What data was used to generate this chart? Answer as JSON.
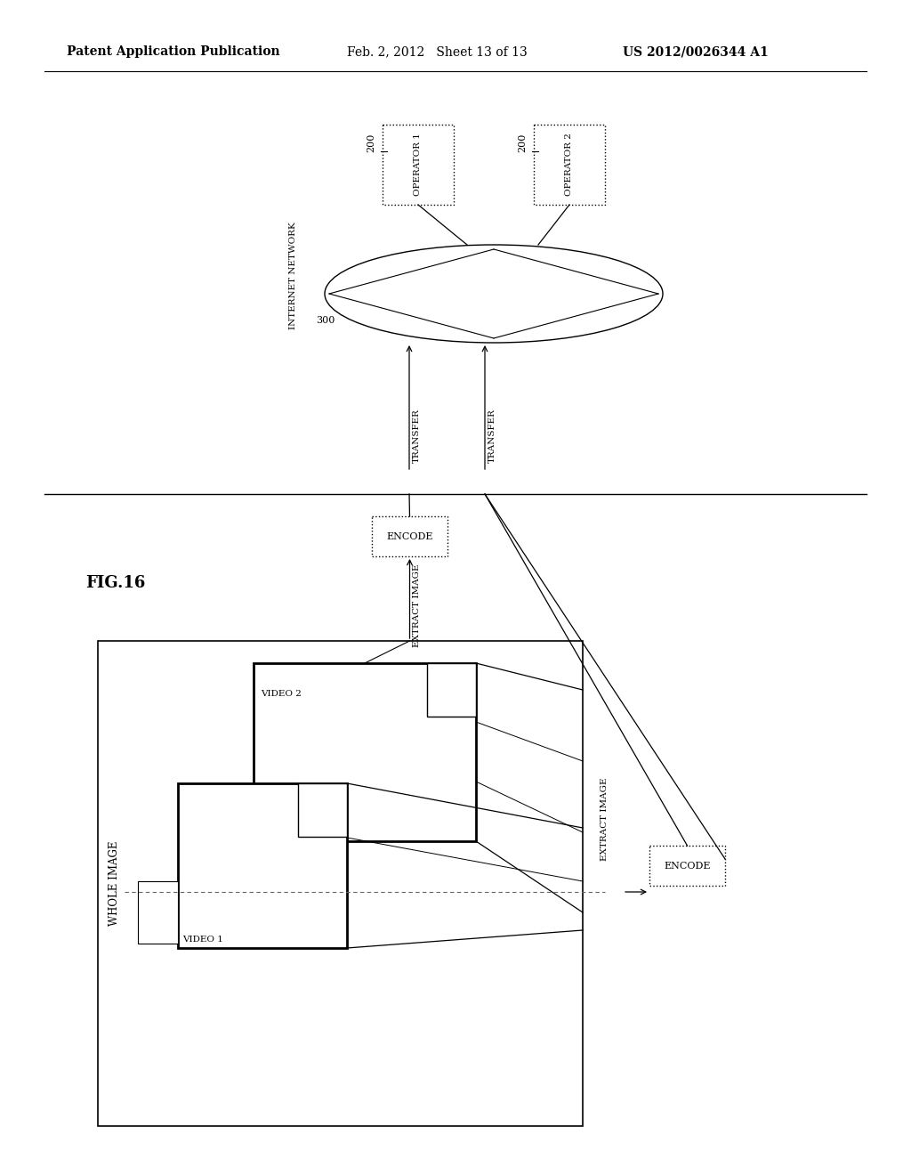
{
  "header_left": "Patent Application Publication",
  "header_mid": "Feb. 2, 2012   Sheet 13 of 13",
  "header_right": "US 2012/0026344 A1",
  "fig_label": "FIG.16",
  "bg_color": "#ffffff",
  "line_color": "#000000",
  "text_color": "#000000",
  "operator1_label": "OPERATOR 1",
  "operator2_label": "OPERATOR 2",
  "operator_num": "200",
  "internet_label": "INTERNET NETWORK",
  "internet_num": "300",
  "transfer_label": "TRANSFER",
  "encode_label": "ENCODE",
  "extract_label": "EXTRACT IMAGE",
  "whole_image_label": "WHOLE IMAGE",
  "video1_label": "VIDEO 1",
  "video2_label": "VIDEO 2"
}
